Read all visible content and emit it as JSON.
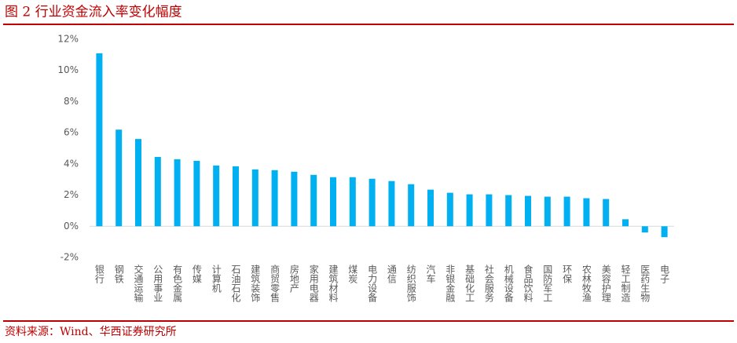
{
  "chart_data": {
    "type": "bar",
    "title": "图 2 行业资金流入率变化幅度",
    "source": "资料来源：Wind、华西证券研究所",
    "categories": [
      "银行",
      "钢铁",
      "交通运输",
      "公用事业",
      "有色金属",
      "传媒",
      "计算机",
      "石油石化",
      "建筑装饰",
      "商贸零售",
      "房地产",
      "家用电器",
      "建筑材料",
      "煤炭",
      "电力设备",
      "通信",
      "纺织服饰",
      "汽车",
      "非银金融",
      "基础化工",
      "社会服务",
      "机械设备",
      "食品饮料",
      "国防军工",
      "环保",
      "农林牧渔",
      "美容护理",
      "轻工制造",
      "医药生物",
      "电子"
    ],
    "values": [
      11.1,
      6.2,
      5.6,
      4.45,
      4.3,
      4.2,
      3.9,
      3.85,
      3.65,
      3.6,
      3.5,
      3.3,
      3.15,
      3.15,
      3.05,
      2.9,
      2.7,
      2.35,
      2.15,
      2.05,
      2.05,
      2.0,
      1.95,
      1.9,
      1.9,
      1.8,
      1.75,
      0.45,
      -0.4,
      -0.7
    ],
    "color": "#00b0f0",
    "ylim": [
      -2,
      12
    ],
    "yticks": [
      {
        "value": -2,
        "label": "-2%"
      },
      {
        "value": 0,
        "label": "0%"
      },
      {
        "value": 2,
        "label": "2%"
      },
      {
        "value": 4,
        "label": "4%"
      },
      {
        "value": 6,
        "label": "6%"
      },
      {
        "value": 8,
        "label": "8%"
      },
      {
        "value": 10,
        "label": "10%"
      },
      {
        "value": 12,
        "label": "12%"
      }
    ],
    "grid": false
  }
}
